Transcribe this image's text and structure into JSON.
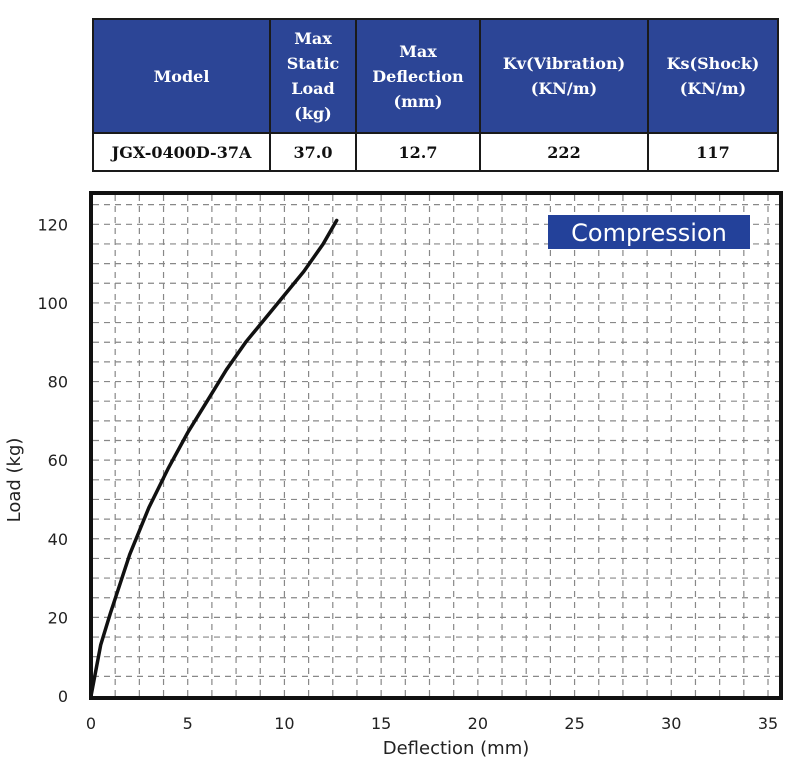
{
  "table": {
    "headers": [
      [
        "Model"
      ],
      [
        "Max",
        "Static",
        "Load",
        "(kg)"
      ],
      [
        "Max",
        "Deflection",
        "(mm)"
      ],
      [
        "Kv(Vibration)",
        "(KN/m)"
      ],
      [
        "Ks(Shock)",
        "(KN/m)"
      ]
    ],
    "row": [
      "JGX-0400D-37A",
      "37.0",
      "12.7",
      "222",
      "117"
    ]
  },
  "chart_data": {
    "type": "line",
    "xlabel": "Deflection (mm)",
    "ylabel": "Load (kg)",
    "xlim": [
      0,
      35
    ],
    "ylim": [
      0,
      130
    ],
    "xticks": [
      0,
      5,
      10,
      15,
      20,
      25,
      30,
      35
    ],
    "yticks": [
      0,
      20,
      40,
      60,
      80,
      100,
      120
    ],
    "grid": true,
    "annotation": "Compression",
    "series": [
      {
        "x": [
          0,
          0.5,
          1,
          2,
          3,
          4,
          5,
          6,
          7,
          8,
          9,
          10,
          11,
          12,
          12.7
        ],
        "y": [
          0,
          13,
          21,
          36,
          48,
          58,
          67,
          75,
          83,
          90,
          96,
          102,
          108,
          115,
          121
        ]
      }
    ]
  },
  "colors": {
    "header_bg": "#2c4596",
    "badge_bg": "#23419a",
    "curve": "#111111",
    "grid": "#888888"
  }
}
